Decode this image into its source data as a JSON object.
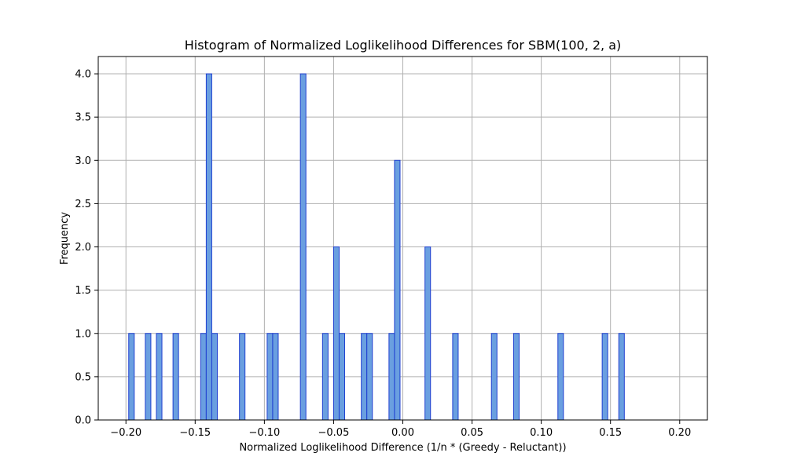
{
  "chart_data": {
    "type": "bar",
    "title": "Histogram of Normalized Loglikelihood Differences for SBM(100, 2, a)",
    "xlabel": "Normalized Loglikelihood Difference (1/n * (Greedy - Reluctant))",
    "ylabel": "Frequency",
    "xlim": [
      -0.22,
      0.22
    ],
    "ylim": [
      0,
      4.2
    ],
    "grid": true,
    "bin_width": 0.004,
    "bar_color": "#6a9fe0",
    "edge_color": "#1f3fd0",
    "x_ticks": [
      -0.2,
      -0.15,
      -0.1,
      -0.05,
      0.0,
      0.05,
      0.1,
      0.15,
      0.2
    ],
    "x_tick_labels": [
      "−0.20",
      "−0.15",
      "−0.10",
      "−0.05",
      "0.00",
      "0.05",
      "0.10",
      "0.15",
      "0.20"
    ],
    "y_ticks": [
      0,
      0.5,
      1,
      1.5,
      2,
      2.5,
      3,
      3.5,
      4
    ],
    "y_tick_labels": [
      "0.0",
      "0.5",
      "1.0",
      "1.5",
      "2.0",
      "2.5",
      "3.0",
      "3.5",
      "4.0"
    ],
    "bins": [
      {
        "x": -0.196,
        "count": 1
      },
      {
        "x": -0.184,
        "count": 1
      },
      {
        "x": -0.176,
        "count": 1
      },
      {
        "x": -0.164,
        "count": 1
      },
      {
        "x": -0.144,
        "count": 1
      },
      {
        "x": -0.14,
        "count": 4
      },
      {
        "x": -0.136,
        "count": 1
      },
      {
        "x": -0.116,
        "count": 1
      },
      {
        "x": -0.096,
        "count": 1
      },
      {
        "x": -0.092,
        "count": 1
      },
      {
        "x": -0.072,
        "count": 4
      },
      {
        "x": -0.056,
        "count": 1
      },
      {
        "x": -0.048,
        "count": 2
      },
      {
        "x": -0.044,
        "count": 1
      },
      {
        "x": -0.028,
        "count": 1
      },
      {
        "x": -0.024,
        "count": 1
      },
      {
        "x": -0.008,
        "count": 1
      },
      {
        "x": -0.004,
        "count": 3
      },
      {
        "x": 0.018,
        "count": 2
      },
      {
        "x": 0.038,
        "count": 1
      },
      {
        "x": 0.066,
        "count": 1
      },
      {
        "x": 0.082,
        "count": 1
      },
      {
        "x": 0.114,
        "count": 1
      },
      {
        "x": 0.146,
        "count": 1
      },
      {
        "x": 0.158,
        "count": 1
      }
    ]
  }
}
